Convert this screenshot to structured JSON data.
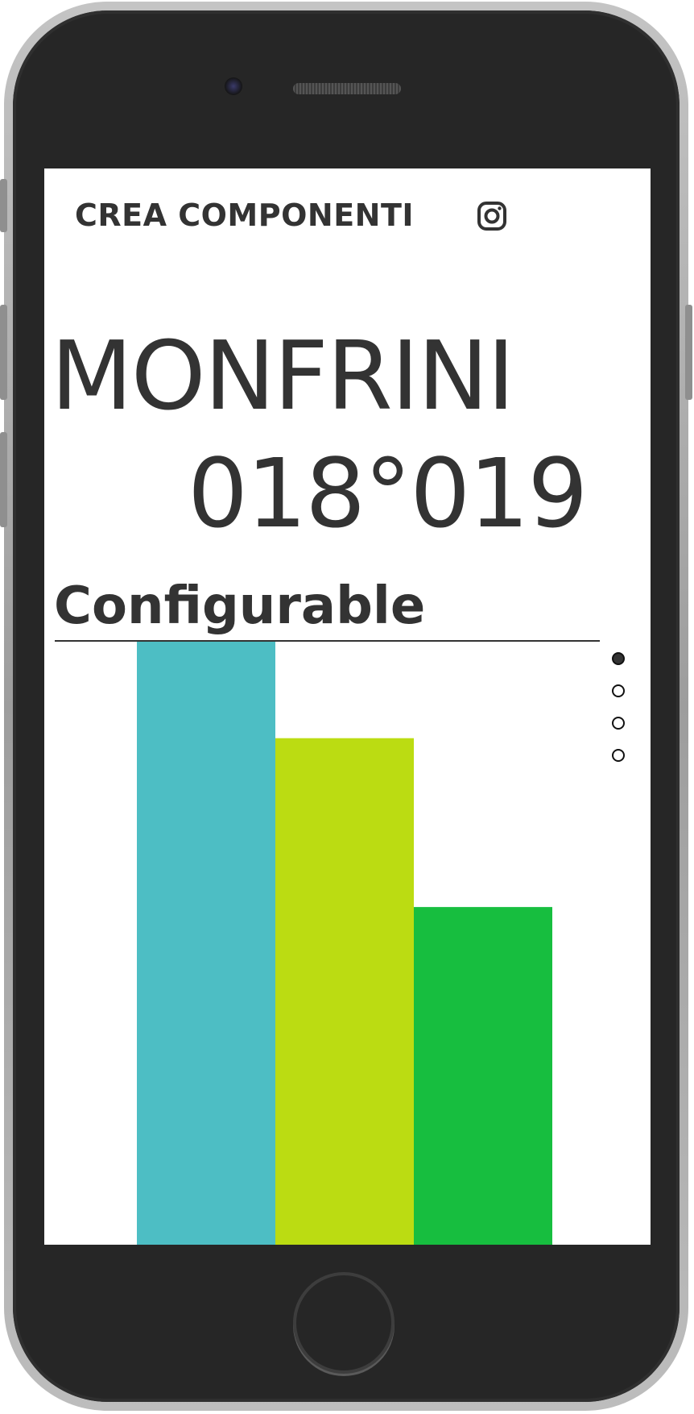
{
  "header": {
    "brand": "CREA COMPONENTI",
    "instagram_icon": "instagram-icon"
  },
  "hero": {
    "line1": "MONFRINI",
    "line2": "018°019"
  },
  "section": {
    "label": "Configurable"
  },
  "slider": {
    "dots": [
      {
        "active": true
      },
      {
        "active": false
      },
      {
        "active": false
      },
      {
        "active": false
      }
    ]
  },
  "colors": {
    "text": "#333333",
    "bar1": "#4dbec4",
    "bar2": "#bbdc12",
    "bar3": "#17be3f",
    "phone_body": "#262626"
  },
  "chart_data": {
    "type": "bar",
    "categories": [
      "",
      "",
      ""
    ],
    "values": [
      100,
      84,
      56
    ],
    "ylim": [
      0,
      100
    ],
    "colors": [
      "#4dbec4",
      "#bbdc12",
      "#17be3f"
    ]
  }
}
